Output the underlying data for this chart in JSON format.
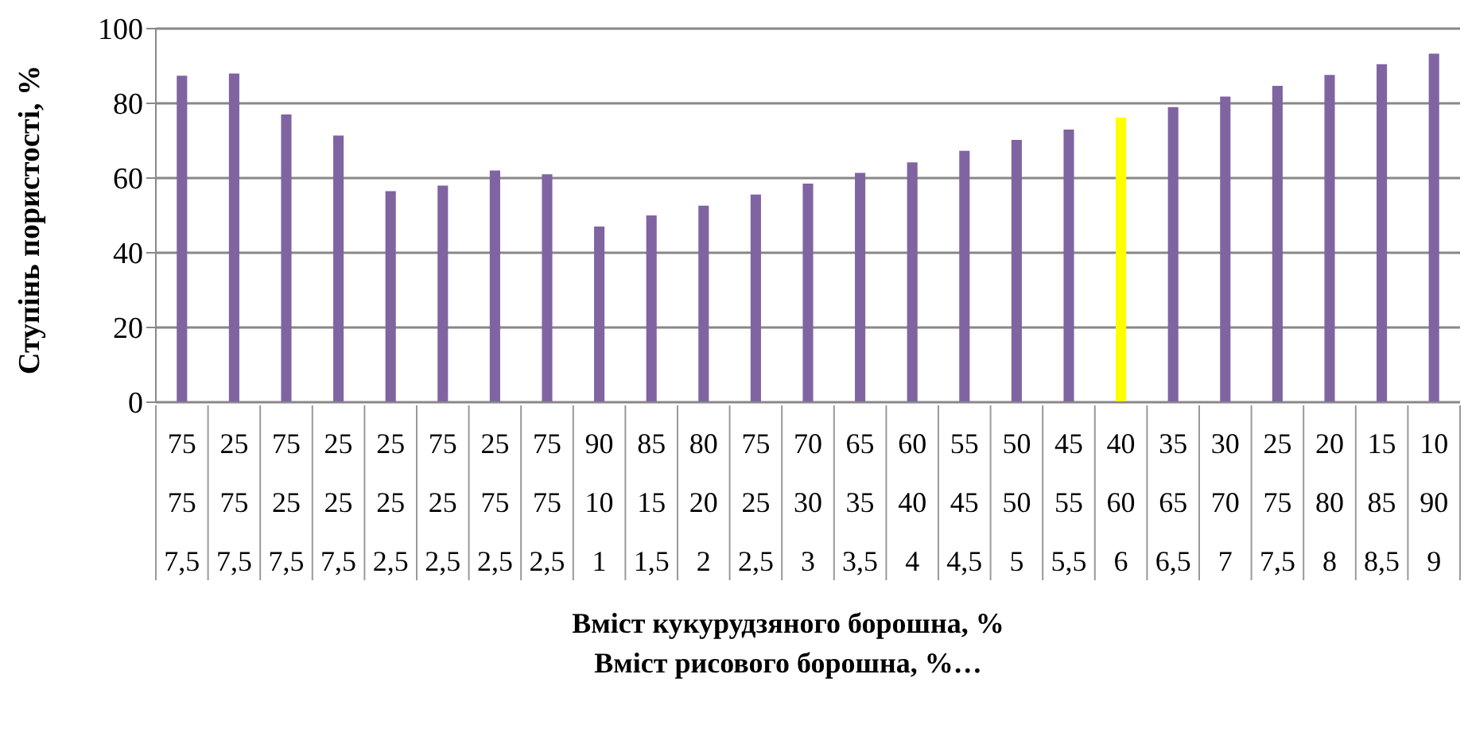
{
  "chart_data": {
    "type": "bar",
    "xlabel": "Вміст кукурудзяного борошна, %\nВміст рисового борошна, %…",
    "ylabel": "Ступінь пористості, %",
    "categories": [
      "75\n75\n7,5",
      "25\n75\n7,5",
      "75\n25\n7,5",
      "25\n25\n7,5",
      "25\n25\n2,5",
      "75\n25\n2,5",
      "25\n75\n2,5",
      "75\n75\n2,5",
      "90\n10\n1",
      "85\n15\n1,5",
      "80\n20\n2",
      "75\n25\n2,5",
      "70\n30\n3",
      "65\n35\n3,5",
      "60\n40\n4",
      "55\n45\n4,5",
      "50\n50\n5",
      "45\n55\n5,5",
      "40\n60\n6",
      "35\n65\n6,5",
      "30\n70\n7",
      "25\n75\n7,5",
      "20\n80\n8",
      "15\n85\n8,5",
      "10\n90\n9"
    ],
    "values": [
      87.4,
      88,
      77,
      71.4,
      56.5,
      58,
      62,
      61,
      47,
      50,
      52.6,
      55.6,
      58.5,
      61.4,
      64.2,
      67.3,
      70.2,
      73,
      76.2,
      79,
      81.8,
      84.7,
      87.6,
      90.5,
      93.3
    ],
    "colors": [
      "#8064a2",
      "#8064a2",
      "#8064a2",
      "#8064a2",
      "#8064a2",
      "#8064a2",
      "#8064a2",
      "#8064a2",
      "#8064a2",
      "#8064a2",
      "#8064a2",
      "#8064a2",
      "#8064a2",
      "#8064a2",
      "#8064a2",
      "#8064a2",
      "#8064a2",
      "#8064a2",
      "#ffff00",
      "#8064a2",
      "#8064a2",
      "#8064a2",
      "#8064a2",
      "#8064a2",
      "#8064a2"
    ],
    "ylim": [
      0,
      100
    ],
    "yticks": [
      0,
      20,
      40,
      60,
      80,
      100
    ],
    "grid": "y",
    "legend": false
  }
}
